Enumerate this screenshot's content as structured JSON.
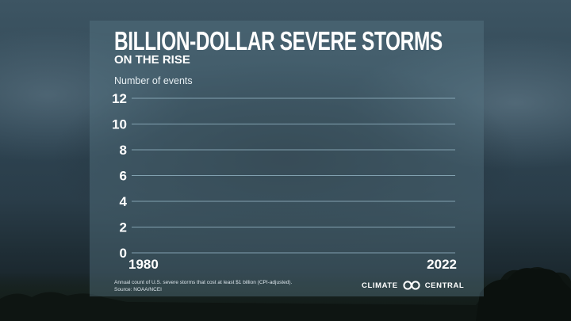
{
  "title": "BILLION-DOLLAR SEVERE STORMS",
  "subtitle": "ON THE RISE",
  "caption": {
    "line1": "Annual count of U.S. severe storms that cost at least $1 billion (CPI-adjusted).",
    "line2": "Source: NOAA/NCEI"
  },
  "brand": {
    "left": "CLIMATE",
    "right": "CENTRAL",
    "logo_icon": "two-linked-circles-icon"
  },
  "colors": {
    "gridline": "#8fb0bf",
    "text": "#ffffff",
    "panel": "#587686"
  },
  "chart_data": {
    "type": "bar",
    "title": "BILLION-DOLLAR SEVERE STORMS",
    "subtitle": "ON THE RISE",
    "ylabel": "Number of events",
    "xlabel": "",
    "ylim": [
      0,
      12
    ],
    "yticks": [
      0,
      2,
      4,
      6,
      8,
      10,
      12
    ],
    "xlim": [
      1980,
      2022
    ],
    "xticks": [
      "1980",
      "2022"
    ],
    "grid": true,
    "series": []
  }
}
